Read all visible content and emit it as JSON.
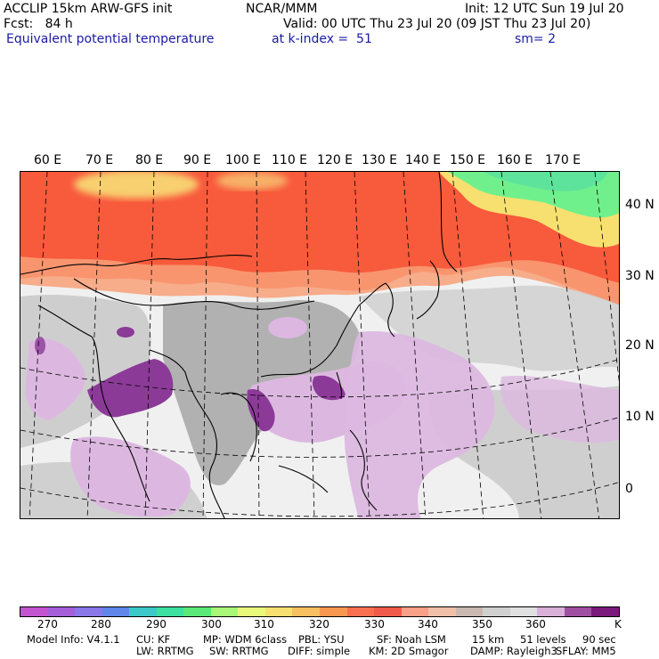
{
  "header": {
    "line1_left": "ACCLIP 15km ARW-GFS init",
    "line1_center": "NCAR/MMM",
    "line1_right": "Init: 12 UTC Sun 19 Jul 20",
    "line2_left": "Fcst:   84 h",
    "line2_right": "Valid: 00 UTC Thu 23 Jul 20 (09 JST Thu 23 Jul 20)",
    "line3_left": "Equivalent potential temperature",
    "line3_center": "at k-index =  51",
    "line3_right": "sm= 2"
  },
  "map": {
    "longitude_labels": [
      "60 E",
      "70 E",
      "80 E",
      "90 E",
      "100 E",
      "110 E",
      "120 E",
      "130 E",
      "140 E",
      "150 E",
      "160 E",
      "170 E"
    ],
    "latitude_labels": [
      "40 N",
      "30 N",
      "20 N",
      "10 N",
      "0"
    ],
    "region": "South / East Asia and Western Pacific",
    "field_colors": {
      "warm_high": "#f85a3c",
      "warm_mid": "#f8a078",
      "warm_peak": "#f8d070",
      "green_band": "#70f08c",
      "gray_dark": "#aaaaaa",
      "gray_light": "#d0d0d0",
      "lavender": "#dcb8e0",
      "purple": "#8c3a98",
      "background": "#f0f0f0"
    }
  },
  "colorbar": {
    "colors": [
      "#c455d0",
      "#a55fd8",
      "#8a78e8",
      "#5f86e8",
      "#3cc8c8",
      "#3ce0a0",
      "#5ae878",
      "#a8f878",
      "#e8f878",
      "#f8e070",
      "#f8c060",
      "#f89850",
      "#f87050",
      "#f05a4a",
      "#f8a088",
      "#f0c0a8",
      "#c8b8b0",
      "#d0d0d0",
      "#e0e0e0",
      "#d8b0d8",
      "#a050a0",
      "#7a1a7a"
    ],
    "tick_labels": [
      "270",
      "280",
      "290",
      "300",
      "310",
      "320",
      "330",
      "340",
      "350",
      "360"
    ],
    "unit": "K"
  },
  "footer": {
    "line1": [
      "Model Info: V4.1.1",
      "CU: KF",
      "MP: WDM 6class",
      "PBL: YSU",
      "SF: Noah LSM",
      "15 km",
      "51 levels",
      "90 sec"
    ],
    "line2": [
      "LW: RRTMG",
      "SW: RRTMG",
      "DIFF: simple",
      "KM: 2D Smagor",
      "DAMP: Rayleigh3",
      "SFLAY: MM5"
    ]
  }
}
